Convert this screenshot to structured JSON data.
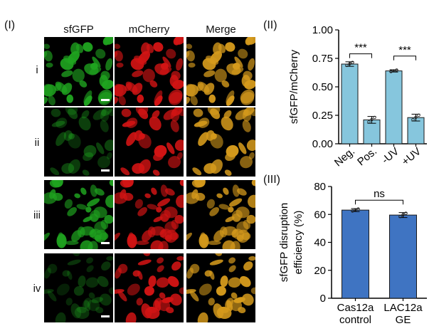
{
  "panel_labels": {
    "p1": "(I)",
    "p2": "(II)",
    "p3": "(III)"
  },
  "columns": [
    "sfGFP",
    "mCherry",
    "Merge"
  ],
  "rows": [
    "i",
    "ii",
    "iii",
    "iv"
  ],
  "colors": {
    "green": "#1fa31f",
    "red": "#d21414",
    "merge": "#d59a1c",
    "bar2": "#86c6dd",
    "bar3": "#3f74c2"
  },
  "chart_data": [
    {
      "type": "bar",
      "ylabel": "sfGFP/mCherry",
      "categories": [
        "Neg.",
        "Pos.",
        "-UV",
        "+UV"
      ],
      "values": [
        0.7,
        0.21,
        0.64,
        0.23
      ],
      "errors": [
        0.02,
        0.03,
        0.01,
        0.03
      ],
      "ylim": [
        0,
        1.0
      ],
      "yticks": [
        "0.00",
        "0.25",
        "0.50",
        "0.75",
        "1.00"
      ],
      "annotations": [
        "***",
        "***"
      ]
    },
    {
      "type": "bar",
      "ylabel": "sfGFP disruption efficiency (%)",
      "categories": [
        "Cas12a control",
        "LAC12a GE"
      ],
      "values": [
        71,
        67
      ],
      "errors": [
        1.2,
        2.0
      ],
      "ylim": [
        0,
        90
      ],
      "yticks": [
        "0",
        "20",
        "40",
        "60",
        "80"
      ],
      "annotations": [
        "ns"
      ]
    }
  ]
}
